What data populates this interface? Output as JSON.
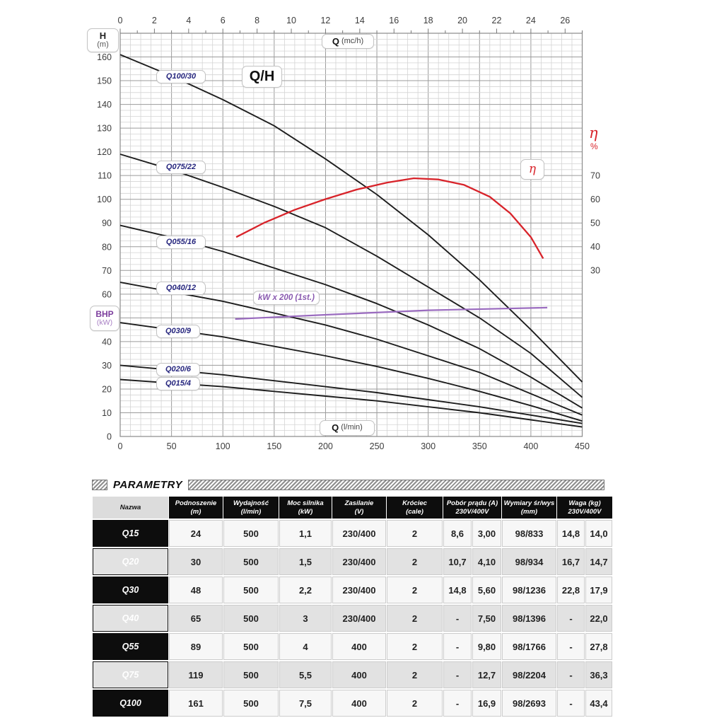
{
  "chart": {
    "title": "Q/H",
    "axis_left_box": {
      "line1": "H",
      "line2": "(m)"
    },
    "top_box": {
      "q": "Q",
      "unit": "(mc/h)"
    },
    "bottom_box": {
      "q": "Q",
      "unit": "(l/min)"
    },
    "right_axis": {
      "symbol": "η",
      "unit": "%"
    },
    "eta_box": "η",
    "bhp": {
      "line1": "BHP",
      "line2": "(kW)"
    },
    "power_label": "kW x 200 (1st.)"
  },
  "chart_data": {
    "type": "line",
    "title": "Q/H",
    "x_axis_bottom": {
      "label": "Q (l/min)",
      "min": 0,
      "max": 450,
      "ticks": [
        0,
        50,
        100,
        150,
        200,
        250,
        300,
        350,
        400,
        450
      ]
    },
    "x_axis_top": {
      "label": "Q (mc/h)",
      "min": 0,
      "max": 27,
      "ticks": [
        0,
        2,
        4,
        6,
        8,
        10,
        12,
        14,
        16,
        18,
        20,
        22,
        24,
        26
      ]
    },
    "y_axis_left": {
      "label": "H (m)",
      "min": 0,
      "max": 170,
      "ticks": [
        0,
        10,
        20,
        30,
        40,
        50,
        60,
        70,
        80,
        90,
        100,
        110,
        120,
        130,
        140,
        150,
        160
      ]
    },
    "y_axis_right": {
      "label": "η %",
      "ticks": [
        30,
        40,
        50,
        60,
        70
      ]
    },
    "grid": {
      "minor_x_lmin": 10,
      "major_x_lmin": 50,
      "minor_y_m": 2.5,
      "major_y_m": 10
    },
    "series": [
      {
        "name": "Q100/30",
        "color": "#1d1d1d",
        "points": [
          [
            0,
            161
          ],
          [
            50,
            152
          ],
          [
            100,
            142
          ],
          [
            150,
            131
          ],
          [
            200,
            117
          ],
          [
            250,
            102
          ],
          [
            300,
            85
          ],
          [
            350,
            66
          ],
          [
            400,
            45
          ],
          [
            450,
            23
          ]
        ]
      },
      {
        "name": "Q075/22",
        "color": "#1d1d1d",
        "points": [
          [
            0,
            119
          ],
          [
            50,
            112.5
          ],
          [
            100,
            105
          ],
          [
            150,
            97
          ],
          [
            200,
            88
          ],
          [
            250,
            76
          ],
          [
            300,
            63
          ],
          [
            350,
            50
          ],
          [
            400,
            35
          ],
          [
            450,
            16.5
          ]
        ]
      },
      {
        "name": "Q055/16",
        "color": "#1d1d1d",
        "points": [
          [
            0,
            89
          ],
          [
            50,
            84
          ],
          [
            100,
            78
          ],
          [
            150,
            71
          ],
          [
            200,
            64
          ],
          [
            250,
            56
          ],
          [
            300,
            47
          ],
          [
            350,
            37
          ],
          [
            400,
            25
          ],
          [
            450,
            12
          ]
        ]
      },
      {
        "name": "Q040/12",
        "color": "#1d1d1d",
        "points": [
          [
            0,
            65
          ],
          [
            50,
            61
          ],
          [
            100,
            57
          ],
          [
            150,
            52
          ],
          [
            200,
            47
          ],
          [
            250,
            41
          ],
          [
            300,
            34
          ],
          [
            350,
            27
          ],
          [
            400,
            18
          ],
          [
            450,
            9
          ]
        ]
      },
      {
        "name": "Q030/9",
        "color": "#1d1d1d",
        "points": [
          [
            0,
            48
          ],
          [
            50,
            45
          ],
          [
            100,
            42
          ],
          [
            150,
            38
          ],
          [
            200,
            34
          ],
          [
            250,
            29.5
          ],
          [
            300,
            24.5
          ],
          [
            350,
            19
          ],
          [
            400,
            13
          ],
          [
            450,
            6.5
          ]
        ]
      },
      {
        "name": "Q020/6",
        "color": "#1d1d1d",
        "points": [
          [
            0,
            30
          ],
          [
            50,
            28
          ],
          [
            100,
            26
          ],
          [
            150,
            23.5
          ],
          [
            200,
            21
          ],
          [
            250,
            18.5
          ],
          [
            300,
            15.5
          ],
          [
            350,
            12.5
          ],
          [
            400,
            9
          ],
          [
            450,
            5.5
          ]
        ]
      },
      {
        "name": "Q015/4",
        "color": "#1d1d1d",
        "points": [
          [
            0,
            24
          ],
          [
            50,
            22.5
          ],
          [
            100,
            21
          ],
          [
            150,
            19
          ],
          [
            200,
            17
          ],
          [
            250,
            15
          ],
          [
            300,
            12.5
          ],
          [
            350,
            10
          ],
          [
            400,
            7
          ],
          [
            450,
            4
          ]
        ]
      }
    ],
    "efficiency_curve": {
      "name": "η",
      "unit": "%",
      "color": "#d8232a",
      "points": [
        [
          113,
          44
        ],
        [
          140,
          50
        ],
        [
          170,
          55.5
        ],
        [
          200,
          60
        ],
        [
          230,
          64
        ],
        [
          260,
          67
        ],
        [
          286,
          68.8
        ],
        [
          310,
          68.3
        ],
        [
          335,
          66
        ],
        [
          360,
          61
        ],
        [
          380,
          54
        ],
        [
          400,
          44
        ],
        [
          412,
          35
        ]
      ]
    },
    "power_line": {
      "name": "kW x 200 (1st.)",
      "color": "#9a6bbf",
      "points_h_units": [
        [
          112,
          49.5
        ],
        [
          200,
          51.3
        ],
        [
          300,
          53.2
        ],
        [
          416,
          54.3
        ]
      ]
    }
  },
  "table": {
    "title": "PARAMETRY",
    "headers": [
      {
        "line1": "Nazwa",
        "line2": ""
      },
      {
        "line1": "Podnoszenie",
        "line2": "(m)"
      },
      {
        "line1": "Wydajność",
        "line2": "(l/min)"
      },
      {
        "line1": "Moc silnika",
        "line2": "(kW)"
      },
      {
        "line1": "Zasilanie",
        "line2": "(V)"
      },
      {
        "line1": "Króciec",
        "line2": "(cale)"
      },
      {
        "line1": "Pobór prądu (A)",
        "line2": "230V/400V"
      },
      {
        "line1": "Wymiary śr/wys",
        "line2": "(mm)"
      },
      {
        "line1": "Waga (kg)",
        "line2": "230V/400V"
      }
    ],
    "rows": [
      {
        "name": "Q15",
        "cells": [
          "24",
          "500",
          "1,1",
          "230/400",
          "2",
          "8,6",
          "3,00",
          "98/833",
          "14,8",
          "14,0"
        ]
      },
      {
        "name": "Q20",
        "cells": [
          "30",
          "500",
          "1,5",
          "230/400",
          "2",
          "10,7",
          "4,10",
          "98/934",
          "16,7",
          "14,7"
        ]
      },
      {
        "name": "Q30",
        "cells": [
          "48",
          "500",
          "2,2",
          "230/400",
          "2",
          "14,8",
          "5,60",
          "98/1236",
          "22,8",
          "17,9"
        ]
      },
      {
        "name": "Q40",
        "cells": [
          "65",
          "500",
          "3",
          "230/400",
          "2",
          "-",
          "7,50",
          "98/1396",
          "-",
          "22,0"
        ]
      },
      {
        "name": "Q55",
        "cells": [
          "89",
          "500",
          "4",
          "400",
          "2",
          "-",
          "9,80",
          "98/1766",
          "-",
          "27,8"
        ]
      },
      {
        "name": "Q75",
        "cells": [
          "119",
          "500",
          "5,5",
          "400",
          "2",
          "-",
          "12,7",
          "98/2204",
          "-",
          "36,3"
        ]
      },
      {
        "name": "Q100",
        "cells": [
          "161",
          "500",
          "7,5",
          "400",
          "2",
          "-",
          "16,9",
          "98/2693",
          "-",
          "43,4"
        ]
      }
    ]
  }
}
